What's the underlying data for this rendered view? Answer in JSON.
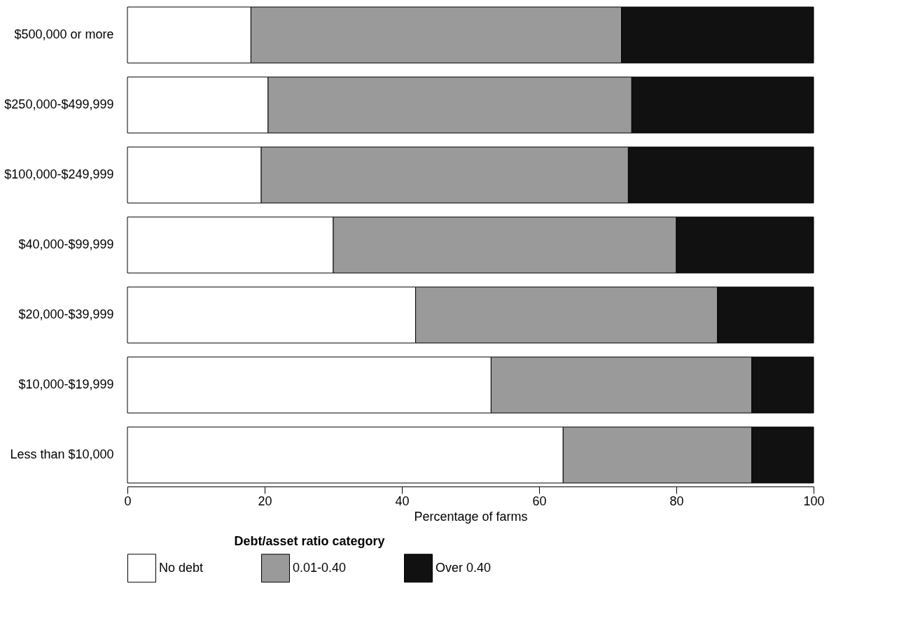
{
  "chart_data": {
    "type": "bar",
    "orientation": "horizontal",
    "stacked": true,
    "categories": [
      "$500,000 or more",
      "$250,000-$499,999",
      "$100,000-$249,999",
      "$40,000-$99,999",
      "$20,000-$39,999",
      "$10,000-$19,999",
      "Less than $10,000"
    ],
    "series": [
      {
        "name": "No debt",
        "color": "#ffffff",
        "values": [
          18,
          20.5,
          19.5,
          30,
          42,
          53,
          63.5
        ]
      },
      {
        "name": "0.01-0.40",
        "color": "#9a9a9a",
        "values": [
          54,
          53,
          53.5,
          50,
          44,
          38,
          27.5
        ]
      },
      {
        "name": "Over 0.40",
        "color": "#111111",
        "values": [
          28,
          26.5,
          27,
          20,
          14,
          9,
          9
        ]
      }
    ],
    "xlabel": "Percentage of farms",
    "legend_title": "Debt/asset ratio category",
    "legend": "bottom",
    "xlim": [
      0,
      100
    ],
    "xticks": [
      0,
      20,
      40,
      60,
      80,
      100
    ],
    "grid": false
  }
}
